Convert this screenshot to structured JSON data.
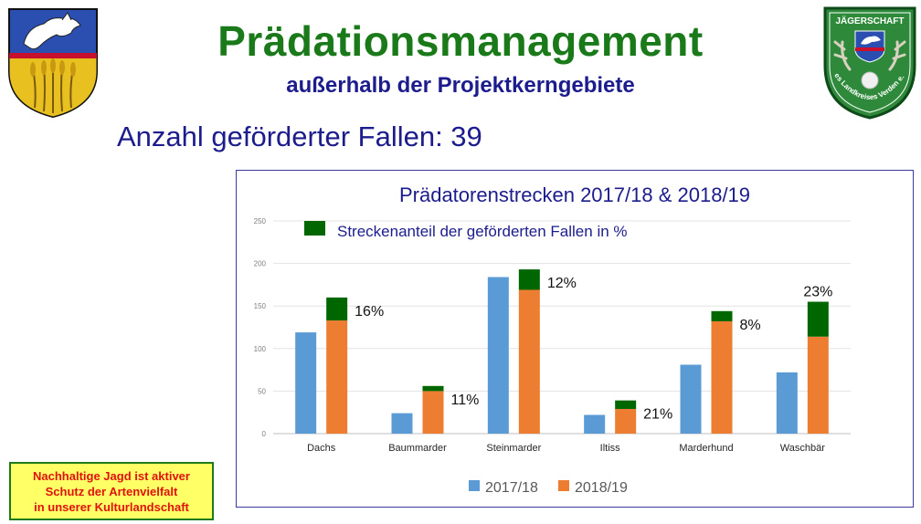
{
  "header": {
    "title": "Prädationsmanagement",
    "subtitle": "außerhalb der Projektkerngebiete",
    "traps_line": "Anzahl geförderter Fallen: 39"
  },
  "logos": {
    "left": {
      "icon": "horse-crest-icon"
    },
    "right": {
      "icon": "jaegerschaft-badge-icon",
      "text_top": "JÄGERSCHAFT",
      "text_bottom": "des Landkreises Verden e.V."
    }
  },
  "slogan": {
    "lines": [
      "Nachhaltige Jagd ist aktiver",
      "Schutz der Artenvielfalt",
      "in unserer Kulturlandschaft"
    ]
  },
  "colors": {
    "title_green": "#1a7a1a",
    "text_blue": "#1c1c8c",
    "series_2017": "#5b9bd5",
    "series_2018": "#ed7d31",
    "trap_share": "#006600",
    "slogan_bg": "#ffff66",
    "slogan_text": "#e0120f"
  },
  "chart_data": {
    "type": "bar",
    "title": "Prädatorenstrecken 2017/18 & 2018/19",
    "categories": [
      "Dachs",
      "Baummarder",
      "Steinmarder",
      "Iltiss",
      "Marderhund",
      "Waschbär"
    ],
    "series": [
      {
        "name": "2017/18",
        "values": [
          119,
          24,
          184,
          22,
          81,
          72
        ]
      },
      {
        "name": "2018/19",
        "values": [
          133,
          50,
          169,
          29,
          132,
          114
        ]
      }
    ],
    "trap_series": {
      "legend": "Streckenanteil der geförderten Fallen in %",
      "values": [
        27,
        6,
        24,
        10,
        12,
        41
      ],
      "labels": [
        "16%",
        "11%",
        "12%",
        "21%",
        "8%",
        "23%"
      ]
    },
    "ylim": [
      0,
      250
    ],
    "yticks": [
      "0",
      "50",
      "100",
      "150",
      "200",
      "250"
    ],
    "grid": true,
    "legend_position": "bottom"
  }
}
